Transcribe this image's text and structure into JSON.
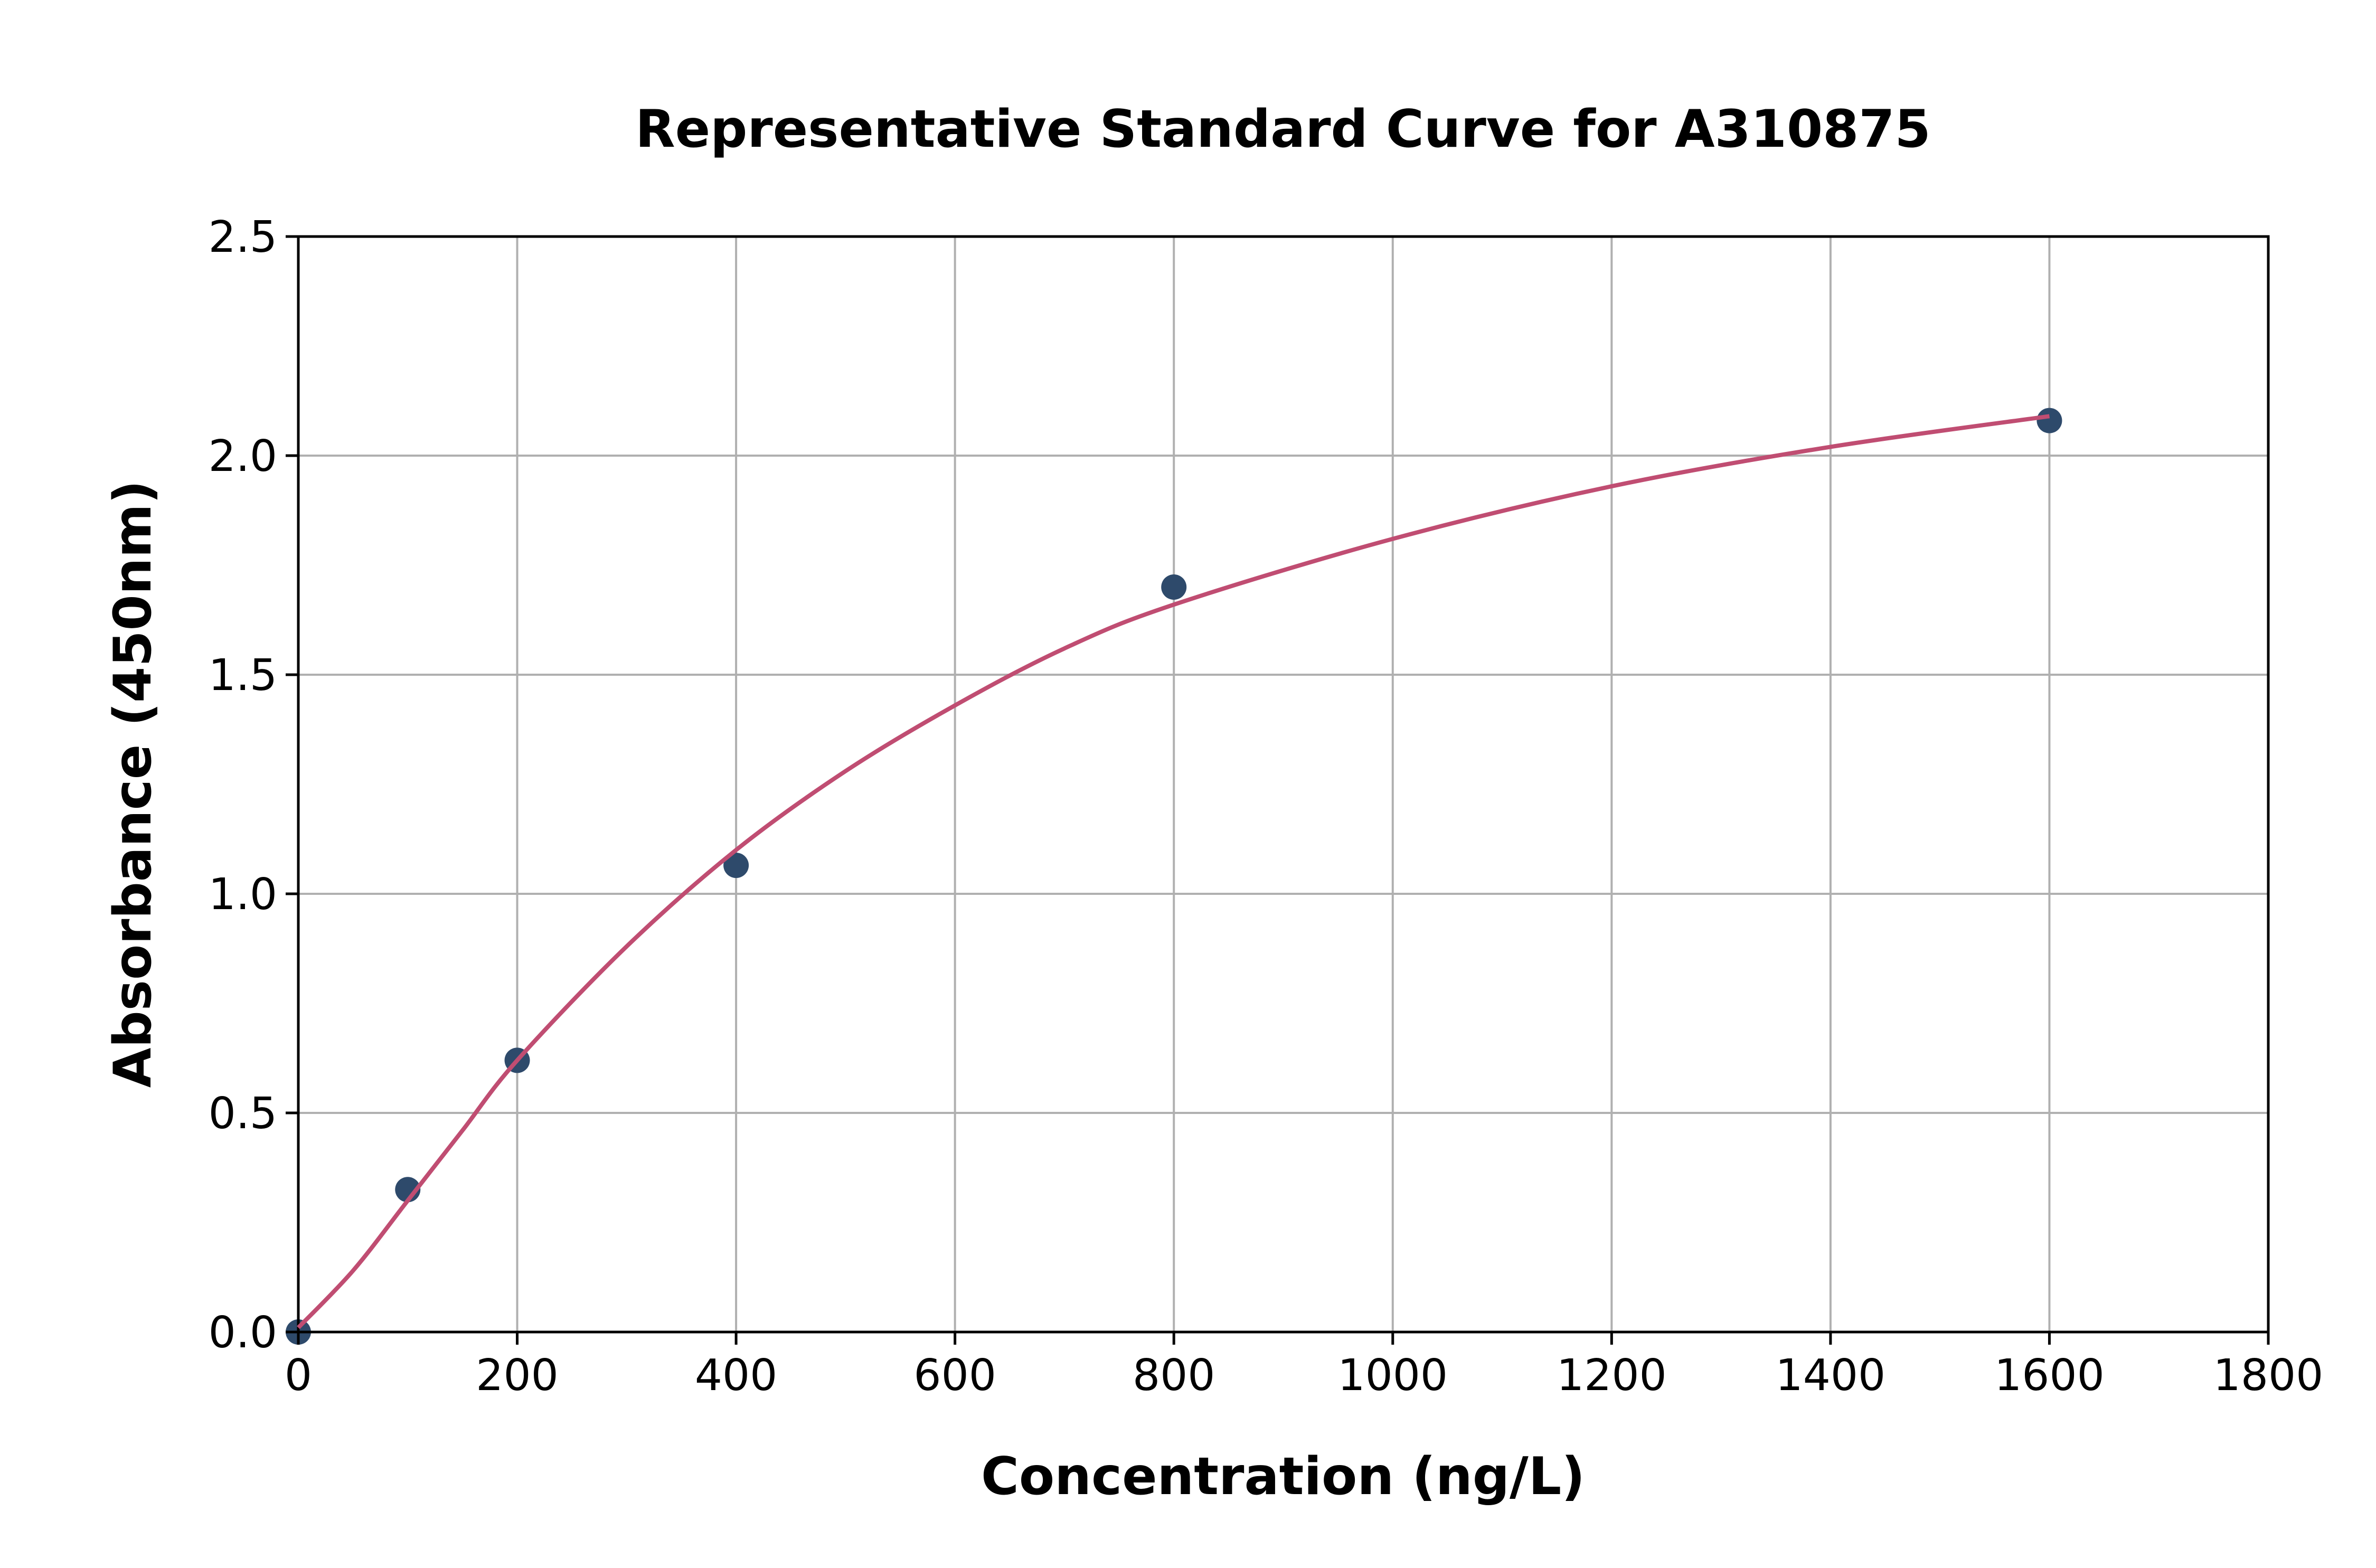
{
  "chart_data": {
    "type": "scatter",
    "title": "Representative Standard Curve for A310875",
    "xlabel": "Concentration (ng/L)",
    "ylabel": "Absorbance (450nm)",
    "xlim": [
      0,
      1800
    ],
    "ylim": [
      0,
      2.5
    ],
    "xticks": [
      "0",
      "200",
      "400",
      "600",
      "800",
      "1000",
      "1200",
      "1400",
      "1600",
      "1800"
    ],
    "yticks": [
      "0.0",
      "0.5",
      "1.0",
      "1.5",
      "2.0",
      "2.5"
    ],
    "grid": true,
    "points": {
      "x": [
        0,
        100,
        200,
        400,
        800,
        1600
      ],
      "y": [
        0.0,
        0.325,
        0.62,
        1.065,
        1.7,
        2.08
      ],
      "color": "#2e4a6b"
    },
    "fit_curve": {
      "x": [
        0,
        50,
        100,
        150,
        200,
        300,
        400,
        500,
        600,
        700,
        800,
        1000,
        1200,
        1400,
        1600
      ],
      "y": [
        0.01,
        0.14,
        0.3,
        0.46,
        0.62,
        0.88,
        1.1,
        1.28,
        1.43,
        1.56,
        1.66,
        1.81,
        1.93,
        2.02,
        2.09
      ],
      "color": "#c04d72"
    }
  }
}
